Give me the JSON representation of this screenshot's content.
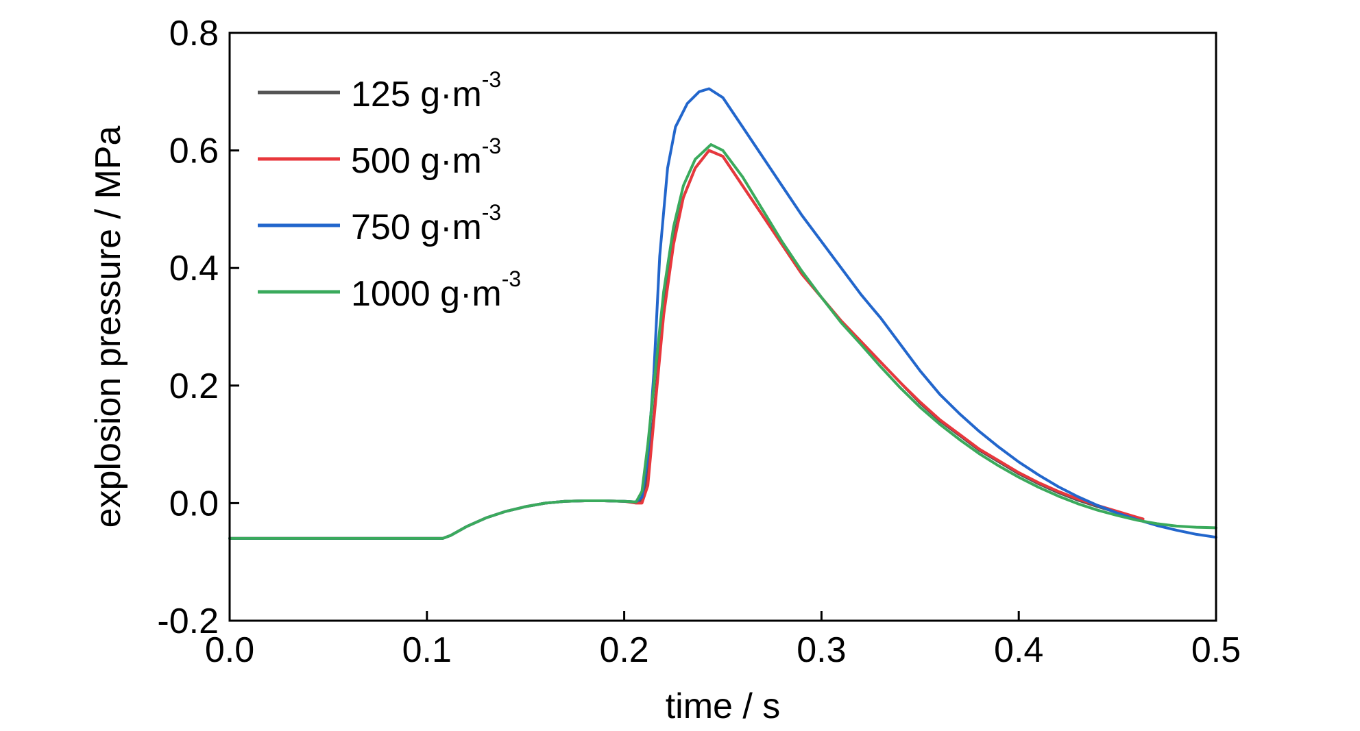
{
  "chart_data": {
    "type": "line",
    "title": "",
    "xlabel": "time / s",
    "ylabel": "explosion pressure / MPa",
    "xlim": [
      0.0,
      0.5
    ],
    "ylim": [
      -0.2,
      0.8
    ],
    "xticks": [
      "0.0",
      "0.1",
      "0.2",
      "0.3",
      "0.4",
      "0.5"
    ],
    "yticks": [
      "-0.2",
      "0.0",
      "0.2",
      "0.4",
      "0.6",
      "0.8"
    ],
    "grid": false,
    "legend_position": "top-left",
    "series": [
      {
        "name": "125 g·m",
        "name_sup": "-3",
        "color": "#555555",
        "x": [
          0.0,
          0.05,
          0.108,
          0.112,
          0.12,
          0.13,
          0.14,
          0.15,
          0.16,
          0.17,
          0.18,
          0.19,
          0.2,
          0.206,
          0.209,
          0.212,
          0.215,
          0.22,
          0.225,
          0.23,
          0.236,
          0.243,
          0.25,
          0.26,
          0.27,
          0.28,
          0.29,
          0.3,
          0.31,
          0.32,
          0.33,
          0.34,
          0.35,
          0.36,
          0.37,
          0.38,
          0.39,
          0.4,
          0.41,
          0.42,
          0.43,
          0.44,
          0.45,
          0.463
        ],
        "y": [
          -0.06,
          -0.06,
          -0.06,
          -0.055,
          -0.04,
          -0.025,
          -0.014,
          -0.006,
          0.0,
          0.003,
          0.004,
          0.004,
          0.003,
          0.002,
          0.004,
          0.05,
          0.15,
          0.33,
          0.45,
          0.52,
          0.57,
          0.6,
          0.59,
          0.54,
          0.49,
          0.44,
          0.39,
          0.35,
          0.31,
          0.275,
          0.24,
          0.205,
          0.17,
          0.14,
          0.115,
          0.09,
          0.07,
          0.05,
          0.033,
          0.018,
          0.005,
          -0.006,
          -0.016,
          -0.027
        ]
      },
      {
        "name": "500 g·m",
        "name_sup": "-3",
        "color": "#e8373c",
        "x": [
          0.0,
          0.05,
          0.108,
          0.112,
          0.12,
          0.13,
          0.14,
          0.15,
          0.16,
          0.17,
          0.18,
          0.19,
          0.2,
          0.206,
          0.209,
          0.212,
          0.215,
          0.22,
          0.225,
          0.23,
          0.236,
          0.243,
          0.25,
          0.26,
          0.27,
          0.28,
          0.29,
          0.3,
          0.31,
          0.32,
          0.33,
          0.34,
          0.35,
          0.36,
          0.37,
          0.38,
          0.39,
          0.4,
          0.41,
          0.42,
          0.43,
          0.44,
          0.45,
          0.463
        ],
        "y": [
          -0.06,
          -0.06,
          -0.06,
          -0.055,
          -0.04,
          -0.025,
          -0.014,
          -0.006,
          0.0,
          0.003,
          0.004,
          0.004,
          0.003,
          0.0,
          0.0,
          0.03,
          0.14,
          0.32,
          0.44,
          0.52,
          0.57,
          0.6,
          0.59,
          0.54,
          0.49,
          0.44,
          0.39,
          0.35,
          0.31,
          0.275,
          0.24,
          0.205,
          0.172,
          0.142,
          0.117,
          0.092,
          0.072,
          0.052,
          0.035,
          0.02,
          0.007,
          -0.004,
          -0.014,
          -0.027
        ]
      },
      {
        "name": "750 g·m",
        "name_sup": "-3",
        "color": "#2266cc",
        "x": [
          0.0,
          0.05,
          0.108,
          0.112,
          0.12,
          0.13,
          0.14,
          0.15,
          0.16,
          0.17,
          0.18,
          0.19,
          0.2,
          0.206,
          0.209,
          0.212,
          0.215,
          0.218,
          0.222,
          0.226,
          0.232,
          0.238,
          0.243,
          0.25,
          0.26,
          0.27,
          0.28,
          0.29,
          0.3,
          0.31,
          0.32,
          0.325,
          0.33,
          0.34,
          0.35,
          0.36,
          0.37,
          0.38,
          0.39,
          0.4,
          0.41,
          0.42,
          0.43,
          0.44,
          0.45,
          0.46,
          0.47,
          0.48,
          0.49,
          0.5
        ],
        "y": [
          -0.06,
          -0.06,
          -0.06,
          -0.055,
          -0.04,
          -0.025,
          -0.014,
          -0.006,
          0.0,
          0.003,
          0.004,
          0.004,
          0.003,
          0.002,
          0.01,
          0.08,
          0.22,
          0.42,
          0.57,
          0.64,
          0.68,
          0.7,
          0.705,
          0.69,
          0.64,
          0.59,
          0.54,
          0.49,
          0.445,
          0.4,
          0.355,
          0.335,
          0.315,
          0.27,
          0.225,
          0.185,
          0.152,
          0.122,
          0.095,
          0.07,
          0.048,
          0.028,
          0.011,
          -0.004,
          -0.017,
          -0.028,
          -0.038,
          -0.046,
          -0.053,
          -0.058
        ]
      },
      {
        "name": "1000 g·m",
        "name_sup": "-3",
        "color": "#3aaa5c",
        "x": [
          0.0,
          0.05,
          0.108,
          0.112,
          0.12,
          0.13,
          0.14,
          0.15,
          0.16,
          0.17,
          0.18,
          0.19,
          0.2,
          0.206,
          0.209,
          0.212,
          0.215,
          0.22,
          0.225,
          0.23,
          0.236,
          0.244,
          0.25,
          0.26,
          0.27,
          0.28,
          0.29,
          0.3,
          0.31,
          0.32,
          0.33,
          0.34,
          0.35,
          0.36,
          0.37,
          0.38,
          0.39,
          0.4,
          0.41,
          0.42,
          0.43,
          0.44,
          0.45,
          0.46,
          0.47,
          0.48,
          0.49,
          0.5
        ],
        "y": [
          -0.06,
          -0.06,
          -0.06,
          -0.055,
          -0.04,
          -0.025,
          -0.014,
          -0.006,
          0.0,
          0.003,
          0.004,
          0.004,
          0.003,
          0.002,
          0.02,
          0.1,
          0.2,
          0.36,
          0.47,
          0.54,
          0.585,
          0.61,
          0.6,
          0.555,
          0.5,
          0.445,
          0.395,
          0.35,
          0.307,
          0.27,
          0.232,
          0.196,
          0.163,
          0.134,
          0.108,
          0.084,
          0.063,
          0.044,
          0.027,
          0.012,
          -0.001,
          -0.012,
          -0.021,
          -0.029,
          -0.035,
          -0.039,
          -0.041,
          -0.042
        ]
      }
    ]
  }
}
